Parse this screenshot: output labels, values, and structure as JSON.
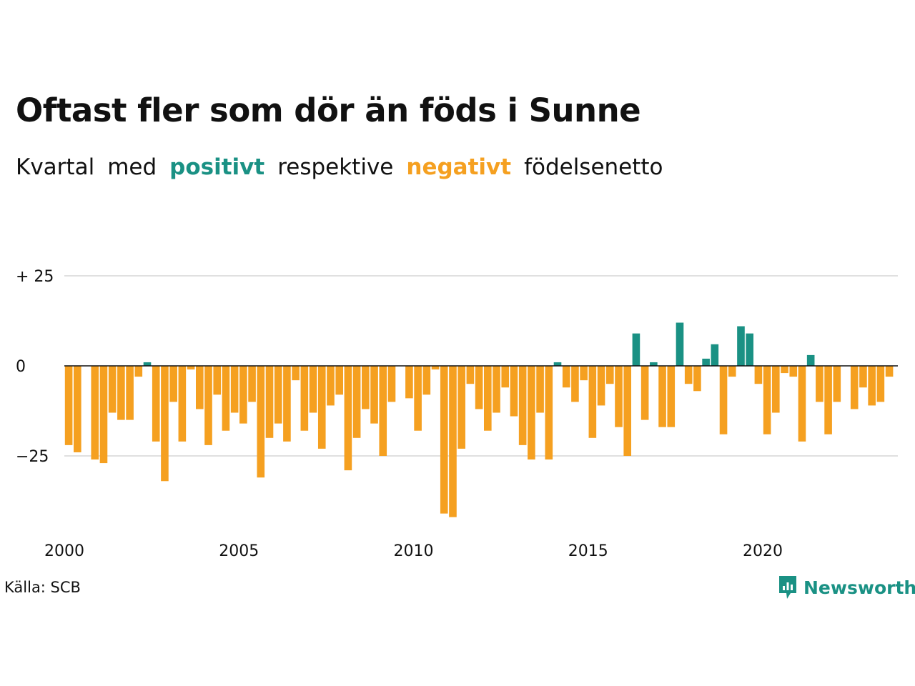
{
  "header": {
    "title": "Oftast fler som dör än föds i Sunne",
    "subtitle": {
      "part1": "Kvartal",
      "part2": "med",
      "positive": "positivt",
      "part3": "respektive",
      "negative": "negativt",
      "part4": "födelsenetto"
    }
  },
  "footer": {
    "source": "Källa: SCB",
    "brand": "Newsworthy"
  },
  "colors": {
    "positive": "#1a9184",
    "negative": "#f5a020",
    "grid": "#e0e0e0",
    "zero_line": "#111111"
  },
  "chart_data": {
    "type": "bar",
    "title": "Oftast fler som dör än föds i Sunne",
    "xlabel": "",
    "ylabel": "",
    "ylim": [
      -45,
      25
    ],
    "xlim": [
      2000,
      2024
    ],
    "x_ticks": [
      2000,
      2005,
      2010,
      2015,
      2020
    ],
    "x_tick_labels": [
      "2000",
      "2005",
      "2010",
      "2015",
      "2020"
    ],
    "y_ticks": [
      25,
      0,
      -25
    ],
    "y_tick_labels": [
      "+ 25",
      "0",
      "−25"
    ],
    "grid": true,
    "legend": "none",
    "first_quarter": "2000 Q1",
    "values": [
      -22,
      -24,
      0,
      -26,
      -27,
      -13,
      -15,
      -15,
      -3,
      1,
      -21,
      -32,
      -10,
      -21,
      -1,
      -12,
      -22,
      -8,
      -18,
      -13,
      -16,
      -10,
      -31,
      -20,
      -16,
      -21,
      -4,
      -18,
      -13,
      -23,
      -11,
      -8,
      -29,
      -20,
      -12,
      -16,
      -25,
      -10,
      0,
      -9,
      -18,
      -8,
      -1,
      -41,
      -42,
      -23,
      -5,
      -12,
      -18,
      -13,
      -6,
      -14,
      -22,
      -26,
      -13,
      -26,
      1,
      -6,
      -10,
      -4,
      -20,
      -11,
      -5,
      -17,
      -25,
      9,
      -15,
      1,
      -17,
      -17,
      12,
      -5,
      -7,
      2,
      6,
      -19,
      -3,
      11,
      9,
      -5,
      -19,
      -13,
      -2,
      -3,
      -21,
      3,
      -10,
      -19,
      -10,
      0,
      -12,
      -6,
      -11,
      -10,
      -3
    ]
  }
}
